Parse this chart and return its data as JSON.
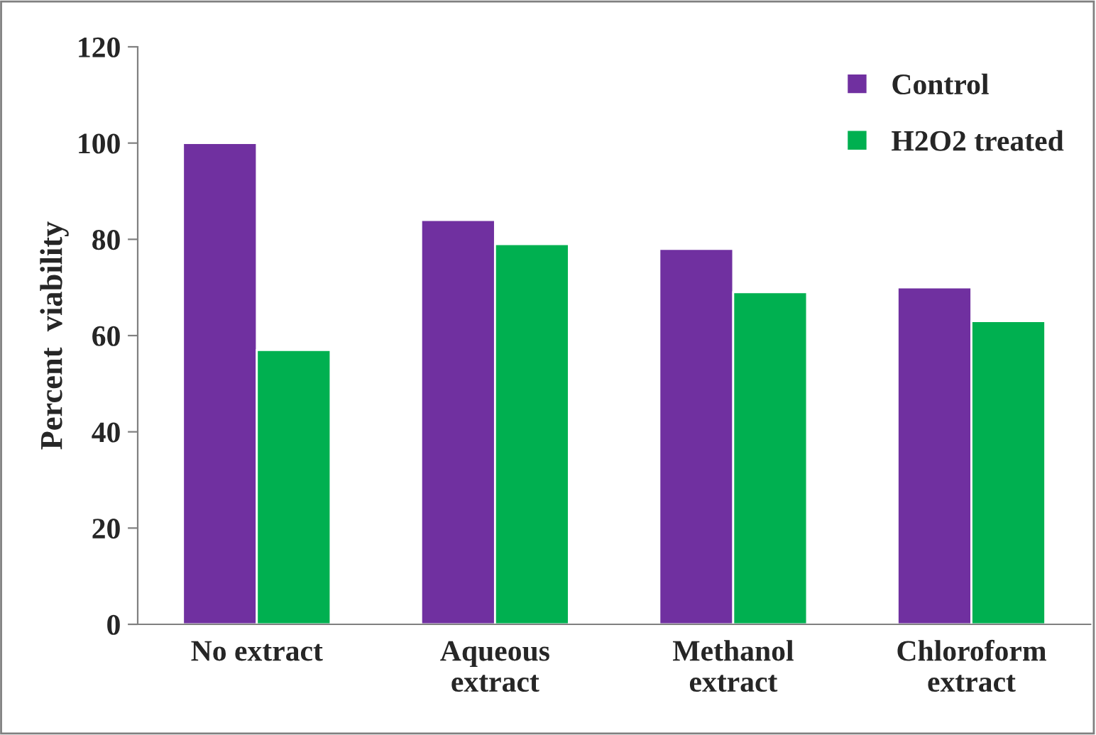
{
  "chart_data": {
    "type": "bar",
    "ylabel": "Percent  viability",
    "categories": [
      "No extract",
      "Aqueous\nextract",
      "Methanol\nextract",
      "Chloroform\nextract"
    ],
    "series": [
      {
        "name": "Control",
        "color": "#7030a0",
        "values": [
          100,
          84,
          78,
          70
        ]
      },
      {
        "name": "H2O2 treated",
        "color": "#00b050",
        "values": [
          57,
          79,
          69,
          63
        ]
      }
    ],
    "ylim": [
      0,
      120
    ],
    "yticks": [
      0,
      20,
      40,
      60,
      80,
      100,
      120
    ],
    "grid": false,
    "legend": "top right"
  }
}
